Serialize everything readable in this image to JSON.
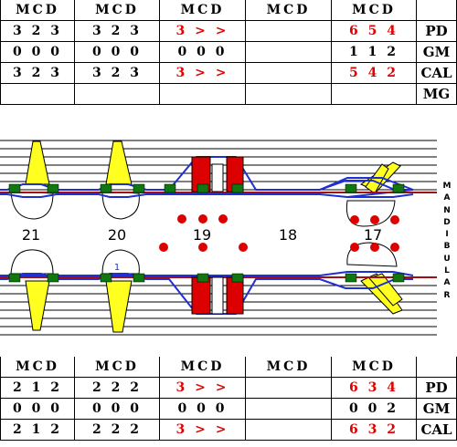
{
  "top_table": {
    "headers": [
      "MCD",
      "MCD",
      "MCD",
      "MCD",
      "MCD"
    ],
    "rows": [
      {
        "label": "PD",
        "cells": [
          "3 2 3",
          "3 2 3",
          "3 > >",
          "",
          "6 5 4"
        ],
        "red": [
          false,
          false,
          true,
          false,
          true
        ]
      },
      {
        "label": "GM",
        "cells": [
          "0 0 0",
          "0 0 0",
          "0 0 0",
          "",
          "1 1 2"
        ],
        "red": [
          false,
          false,
          false,
          false,
          false
        ]
      },
      {
        "label": "CAL",
        "cells": [
          "3 2 3",
          "3 2 3",
          "3 > >",
          "",
          "5 4 2"
        ],
        "red": [
          false,
          false,
          true,
          false,
          true
        ]
      },
      {
        "label": "MG",
        "cells": [
          "",
          "",
          "",
          "",
          ""
        ],
        "red": [
          false,
          false,
          false,
          false,
          false
        ]
      }
    ]
  },
  "bottom_table": {
    "headers": [
      "MCD",
      "MCD",
      "MCD",
      "MCD",
      "MCD"
    ],
    "rows": [
      {
        "label": "PD",
        "cells": [
          "2 1 2",
          "2 2 2",
          "3 > >",
          "",
          "6 3 4"
        ],
        "red": [
          false,
          false,
          true,
          false,
          true
        ]
      },
      {
        "label": "GM",
        "cells": [
          "0 0 0",
          "0 0 0",
          "0 0 0",
          "",
          "0 0 2"
        ],
        "red": [
          false,
          false,
          false,
          false,
          false
        ]
      },
      {
        "label": "CAL",
        "cells": [
          "2 1 2",
          "2 2 2",
          "3 > >",
          "",
          "6 3 2"
        ],
        "red": [
          false,
          false,
          true,
          false,
          true
        ]
      }
    ]
  },
  "chart": {
    "teeth": [
      "21",
      "20",
      "19",
      "18",
      "17"
    ],
    "side_label": "MANDIBULAR",
    "annotation": "1",
    "colors": {
      "line": "#1f2fd0",
      "bone": "#a01010",
      "crown": "#ffff20",
      "bleed": "#dd0000",
      "plaque": "#117711"
    }
  }
}
